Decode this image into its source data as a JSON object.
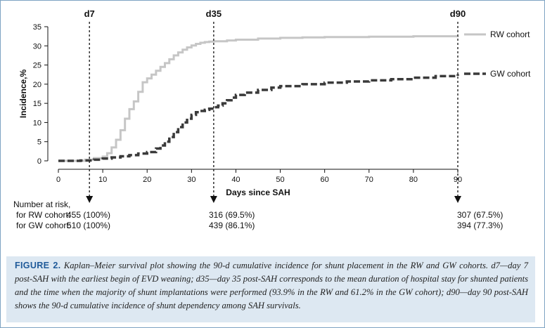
{
  "chart_data": {
    "type": "line",
    "xlabel": "Days since SAH",
    "ylabel": "Incidence,%",
    "xlim": [
      0,
      90
    ],
    "ylim": [
      0,
      35
    ],
    "x_ticks": [
      0,
      10,
      20,
      30,
      40,
      50,
      60,
      70,
      80,
      90
    ],
    "y_ticks": [
      0,
      5,
      10,
      15,
      20,
      25,
      30,
      35
    ],
    "grid": false,
    "legend_position": "right",
    "step": true,
    "series": [
      {
        "name": "RW cohort",
        "color": "#c6c6c6",
        "style": "solid",
        "x": [
          0,
          6,
          8,
          10,
          11,
          12,
          13,
          14,
          15,
          16,
          17,
          18,
          19,
          20,
          21,
          22,
          23,
          24,
          25,
          26,
          27,
          28,
          29,
          30,
          31,
          32,
          33,
          34,
          35,
          38,
          40,
          45,
          50,
          55,
          60,
          70,
          80,
          90
        ],
        "y": [
          0,
          0.3,
          0.7,
          1.1,
          2.0,
          3.5,
          5.5,
          8.0,
          11.0,
          13.5,
          15.5,
          18.0,
          20.5,
          21.5,
          22.5,
          23.5,
          24.5,
          25.5,
          26.5,
          27.5,
          28.3,
          29.0,
          29.6,
          30.1,
          30.5,
          30.8,
          31.0,
          31.1,
          31.2,
          31.4,
          31.6,
          31.9,
          32.1,
          32.2,
          32.3,
          32.4,
          32.5,
          32.6
        ]
      },
      {
        "name": "GW cohort",
        "color": "#3a3a3a",
        "style": "dashed",
        "x": [
          0,
          5,
          8,
          10,
          12,
          14,
          16,
          18,
          20,
          22,
          23,
          24,
          25,
          26,
          27,
          28,
          29,
          30,
          31,
          32,
          33,
          34,
          35,
          36,
          37,
          38,
          39,
          40,
          42,
          45,
          48,
          50,
          55,
          60,
          65,
          70,
          75,
          80,
          85,
          90
        ],
        "y": [
          0,
          0.1,
          0.3,
          0.6,
          0.9,
          1.2,
          1.5,
          1.9,
          2.3,
          3.2,
          4.0,
          5.0,
          6.2,
          7.5,
          8.8,
          10.0,
          11.0,
          12.0,
          12.7,
          13.0,
          13.3,
          13.6,
          14.0,
          14.4,
          15.0,
          15.8,
          16.5,
          17.2,
          17.8,
          18.5,
          19.1,
          19.5,
          20.0,
          20.4,
          20.7,
          21.0,
          21.3,
          21.7,
          22.1,
          22.6
        ]
      }
    ],
    "markers": [
      {
        "label": "d7",
        "day": 7
      },
      {
        "label": "d35",
        "day": 35
      },
      {
        "label": "d90",
        "day": 90
      }
    ]
  },
  "risk_table": {
    "title": "Number at risk,",
    "rw_label": "for RW cohort:",
    "gw_label": "for GW cohort:",
    "rw_values": [
      "455 (100%)",
      "316 (69.5%)",
      "307 (67.5%)"
    ],
    "gw_values": [
      "510 (100%)",
      "439 (86.1%)",
      "394 (77.3%)"
    ]
  },
  "caption": {
    "label": "FIGURE 2.",
    "text": "Kaplan–Meier survival plot showing the 90-d cumulative incidence for shunt placement in the RW and GW cohorts. d7—day 7 post-SAH with the earliest begin of EVD weaning; d35—day 35 post-SAH corresponds to the mean duration of hospital stay for shunted patients and the time when the majority of shunt implantations were performed (93.9% in the RW and 61.2% in the GW cohort); d90—day 90 post-SAH shows the 90-d cumulative incidence of shunt dependency among SAH survivals."
  }
}
